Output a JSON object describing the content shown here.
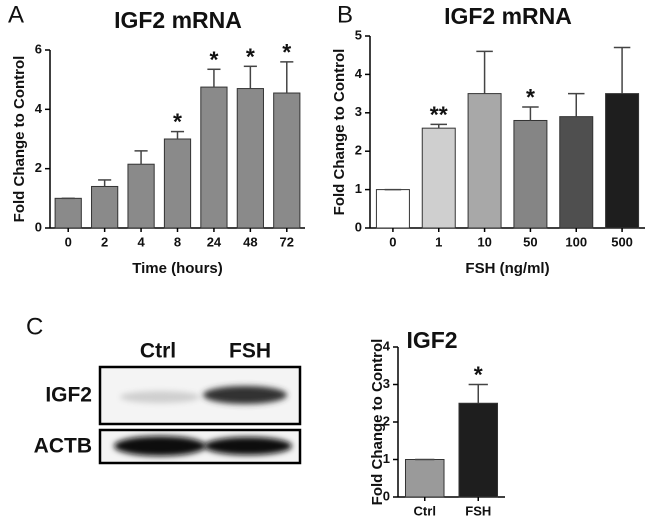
{
  "chart_data": [
    {
      "type": "bar",
      "panel": "A",
      "title": "IGF2 mRNA",
      "ylabel": "Fold Change to Control",
      "xlabel": "Time (hours)",
      "categories": [
        "0",
        "2",
        "4",
        "8",
        "24",
        "48",
        "72"
      ],
      "values": [
        1,
        1.4,
        2.15,
        3.0,
        4.75,
        4.7,
        4.55
      ],
      "errors": [
        0,
        0.22,
        0.45,
        0.25,
        0.6,
        0.75,
        1.05
      ],
      "significance": [
        null,
        null,
        null,
        "*",
        "*",
        "*",
        "*"
      ],
      "colors": [
        "#8a8a8a",
        "#8a8a8a",
        "#8a8a8a",
        "#8a8a8a",
        "#8a8a8a",
        "#8a8a8a",
        "#8a8a8a"
      ],
      "ylim": [
        0,
        6
      ],
      "yticks": [
        0,
        2,
        4,
        6
      ]
    },
    {
      "type": "bar",
      "panel": "B",
      "title": "IGF2 mRNA",
      "ylabel": "Fold Change to Control",
      "xlabel": "FSH (ng/ml)",
      "categories": [
        "0",
        "1",
        "10",
        "50",
        "100",
        "500"
      ],
      "values": [
        1,
        2.6,
        3.5,
        2.8,
        2.9,
        3.5
      ],
      "errors": [
        0,
        0.1,
        1.1,
        0.35,
        0.6,
        1.2
      ],
      "significance": [
        null,
        "**",
        null,
        "*",
        null,
        null
      ],
      "colors": [
        "#ffffff",
        "#cfcfcf",
        "#a8a8a8",
        "#858585",
        "#4f4f4f",
        "#1e1e1e"
      ],
      "ylim": [
        0,
        5
      ],
      "yticks": [
        0,
        1,
        2,
        3,
        4,
        5
      ]
    },
    {
      "type": "bar",
      "panel": "C",
      "title": "IGF2",
      "ylabel": "Fold Change to Control",
      "categories": [
        "Ctrl",
        "FSH"
      ],
      "values": [
        1,
        2.5
      ],
      "errors": [
        0,
        0.5
      ],
      "significance": [
        null,
        "*"
      ],
      "colors": [
        "#9a9a9a",
        "#1e1e1e"
      ],
      "ylim": [
        0,
        4
      ],
      "yticks": [
        0,
        1,
        2,
        3,
        4
      ]
    }
  ],
  "blot": {
    "lanes": [
      "Ctrl",
      "FSH"
    ],
    "rows": [
      "IGF2",
      "ACTB"
    ]
  }
}
